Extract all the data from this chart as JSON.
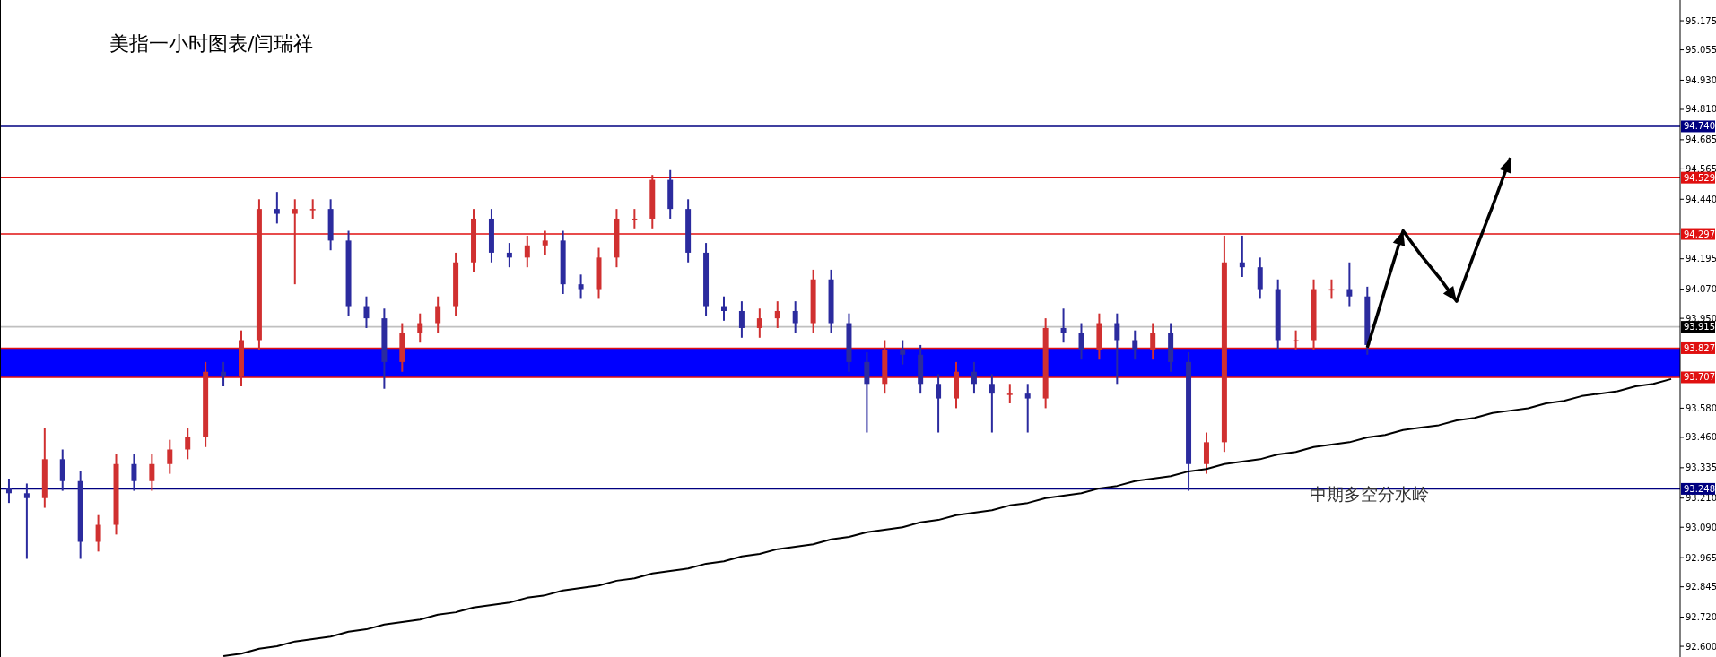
{
  "chart_data": {
    "type": "candlestick",
    "title": "美指一小时图表/闫瑞祥",
    "annotations": [
      "中期多空分水岭"
    ],
    "categories": [
      null,
      null,
      null,
      null,
      null,
      null,
      null,
      null,
      null,
      null,
      null,
      null,
      null,
      null,
      null,
      null,
      null,
      null,
      null,
      null,
      null,
      null,
      null,
      null,
      null,
      null,
      null,
      null,
      null,
      null,
      null,
      null,
      null,
      null,
      null,
      null,
      null,
      null,
      null,
      null,
      null,
      null,
      null,
      null,
      null,
      null,
      null,
      null,
      null,
      null,
      null,
      null,
      null,
      null,
      null,
      null,
      null,
      null,
      null,
      null,
      null,
      null,
      null,
      null,
      null,
      null,
      null,
      null,
      null,
      null,
      null,
      null,
      null,
      null,
      null,
      null,
      null,
      null,
      null,
      null,
      null,
      null,
      null,
      null,
      null,
      null,
      null,
      null,
      null,
      null,
      null,
      null,
      null,
      null
    ],
    "ylim": [
      92.556,
      95.26
    ],
    "tick_labels": "y",
    "yticks": [
      {
        "value": 95.175,
        "label": "95.175"
      },
      {
        "value": 95.055,
        "label": "95.055"
      },
      {
        "value": 94.93,
        "label": "94.930"
      },
      {
        "value": 94.81,
        "label": "94.810"
      },
      {
        "value": 94.685,
        "label": "94.685"
      },
      {
        "value": 94.565,
        "label": "94.565"
      },
      {
        "value": 94.44,
        "label": "94.440"
      },
      {
        "value": 94.195,
        "label": "94.195"
      },
      {
        "value": 94.07,
        "label": "94.070"
      },
      {
        "value": 93.95,
        "label": "93.950"
      },
      {
        "value": 93.58,
        "label": "93.580"
      },
      {
        "value": 93.46,
        "label": "93.460"
      },
      {
        "value": 93.335,
        "label": "93.335"
      },
      {
        "value": 93.21,
        "label": "93.210"
      },
      {
        "value": 93.09,
        "label": "93.090"
      },
      {
        "value": 92.965,
        "label": "92.965"
      },
      {
        "value": 92.845,
        "label": "92.845"
      },
      {
        "value": 92.72,
        "label": "92.720"
      },
      {
        "value": 92.6,
        "label": "92.600"
      }
    ],
    "ref_lines": [
      {
        "axis": "y",
        "value": 94.74,
        "label": "94.740",
        "color": "#000080"
      },
      {
        "axis": "y",
        "value": 94.529,
        "label": "94.529",
        "color": "#e01010"
      },
      {
        "axis": "y",
        "value": 94.297,
        "label": "94.297",
        "color": "#e01010"
      },
      {
        "axis": "y",
        "value": 93.915,
        "label": "93.915",
        "color": "#c0c0c0"
      },
      {
        "axis": "y",
        "value": 93.827,
        "label": "93.827",
        "color": "#e01010"
      },
      {
        "axis": "y",
        "value": 93.707,
        "label": "93.707",
        "color": "#e01010"
      },
      {
        "axis": "y",
        "value": 93.248,
        "label": "93.248",
        "color": "#000080"
      }
    ],
    "bands": [
      {
        "axis": "y",
        "from": 93.707,
        "to": 93.827,
        "color": "#0000ff"
      }
    ],
    "series": [
      {
        "type": "candlestick",
        "colors": [
          "#2b2b9e",
          "#2b2b9e",
          "#d03030",
          "#2b2b9e",
          "#2b2b9e",
          "#d03030",
          "#d03030",
          "#2b2b9e",
          "#d03030",
          "#d03030",
          "#d03030",
          "#d03030",
          "#2b2b9e",
          "#d03030",
          "#d03030",
          "#2b2b9e",
          "#d03030",
          "#d03030",
          "#2b2b9e",
          "#2b2b9e",
          "#2b2b9e",
          "#2b2b9e",
          "#d03030",
          "#d03030",
          "#d03030",
          "#d03030",
          "#d03030",
          "#2b2b9e",
          "#2b2b9e",
          "#d03030",
          "#d03030",
          "#2b2b9e",
          "#2b2b9e",
          "#d03030",
          "#d03030",
          "#d03030",
          "#d03030",
          "#2b2b9e",
          "#2b2b9e",
          "#2b2b9e",
          "#2b2b9e",
          "#2b2b9e",
          "#d03030",
          "#d03030",
          "#2b2b9e",
          "#d03030",
          "#2b2b9e",
          "#2b2b9e",
          "#2b2b9e",
          "#d03030",
          "#2b2b9e",
          "#2b2b9e",
          "#2b2b9e",
          "#d03030",
          "#2b2b9e",
          "#2b2b9e",
          "#d03030",
          "#2b2b9e",
          "#d03030",
          "#2b2b9e",
          "#2b2b9e",
          "#d03030",
          "#2b2b9e",
          "#2b2b9e",
          "#d03030",
          "#2b2b9e",
          "#2b2b9e",
          "#d03030",
          "#d03030",
          "#2b2b9e",
          "#2b2b9e",
          "#2b2b9e",
          "#d03030",
          "#d03030",
          "#d03030",
          "#2b2b9e",
          "#2b2b9e",
          null,
          null,
          null,
          null,
          null,
          null,
          null,
          null,
          null,
          null,
          null,
          null,
          null,
          null,
          null,
          null,
          null
        ],
        "ohlc": [
          [
            93.25,
            93.29,
            93.19,
            93.23
          ],
          [
            93.23,
            93.27,
            92.96,
            93.21
          ],
          [
            93.21,
            93.5,
            93.17,
            93.37
          ],
          [
            93.37,
            93.41,
            93.24,
            93.28
          ],
          [
            93.28,
            93.32,
            92.96,
            93.03
          ],
          [
            93.03,
            93.14,
            92.99,
            93.1
          ],
          [
            93.1,
            93.39,
            93.06,
            93.35
          ],
          [
            93.35,
            93.39,
            93.24,
            93.28
          ],
          [
            93.28,
            93.39,
            93.24,
            93.35
          ],
          [
            93.35,
            93.45,
            93.31,
            93.41
          ],
          [
            93.41,
            93.5,
            93.37,
            93.46
          ],
          [
            93.46,
            93.77,
            93.42,
            93.73
          ],
          [
            93.73,
            93.77,
            93.67,
            93.71
          ],
          [
            93.71,
            93.9,
            93.67,
            93.86
          ],
          [
            93.86,
            94.44,
            93.82,
            94.4
          ],
          [
            94.4,
            94.47,
            94.34,
            94.38
          ],
          [
            94.38,
            94.44,
            94.09,
            94.4
          ],
          [
            94.4,
            94.44,
            94.36,
            94.4
          ],
          [
            94.4,
            94.44,
            94.23,
            94.27
          ],
          [
            94.27,
            94.31,
            93.96,
            94.0
          ],
          [
            94.0,
            94.04,
            93.91,
            93.95
          ],
          [
            93.95,
            93.99,
            93.66,
            93.77
          ],
          [
            93.77,
            93.93,
            93.73,
            93.89
          ],
          [
            93.89,
            93.97,
            93.85,
            93.93
          ],
          [
            93.93,
            94.04,
            93.89,
            94.0
          ],
          [
            94.0,
            94.22,
            93.96,
            94.18
          ],
          [
            94.18,
            94.4,
            94.14,
            94.36
          ],
          [
            94.36,
            94.4,
            94.18,
            94.22
          ],
          [
            94.22,
            94.26,
            94.16,
            94.2
          ],
          [
            94.2,
            94.29,
            94.16,
            94.25
          ],
          [
            94.25,
            94.31,
            94.21,
            94.27
          ],
          [
            94.27,
            94.31,
            94.05,
            94.09
          ],
          [
            94.09,
            94.13,
            94.03,
            94.07
          ],
          [
            94.07,
            94.24,
            94.03,
            94.2
          ],
          [
            94.2,
            94.4,
            94.16,
            94.36
          ],
          [
            94.36,
            94.4,
            94.32,
            94.36
          ],
          [
            94.36,
            94.54,
            94.32,
            94.52
          ],
          [
            94.52,
            94.56,
            94.36,
            94.4
          ],
          [
            94.4,
            94.44,
            94.18,
            94.22
          ],
          [
            94.22,
            94.26,
            93.96,
            94.0
          ],
          [
            94.0,
            94.04,
            93.94,
            93.98
          ],
          [
            93.98,
            94.02,
            93.87,
            93.91
          ],
          [
            93.91,
            93.99,
            93.87,
            93.95
          ],
          [
            93.95,
            94.02,
            93.91,
            93.98
          ],
          [
            93.98,
            94.02,
            93.89,
            93.93
          ],
          [
            93.93,
            94.15,
            93.89,
            94.11
          ],
          [
            94.11,
            94.15,
            93.89,
            93.93
          ],
          [
            93.93,
            93.97,
            93.73,
            93.77
          ],
          [
            93.77,
            93.81,
            93.48,
            93.68
          ],
          [
            93.68,
            93.86,
            93.64,
            93.82
          ],
          [
            93.82,
            93.86,
            93.76,
            93.8
          ],
          [
            93.8,
            93.84,
            93.64,
            93.68
          ],
          [
            93.68,
            93.72,
            93.48,
            93.62
          ],
          [
            93.62,
            93.77,
            93.58,
            93.73
          ],
          [
            93.73,
            93.77,
            93.64,
            93.68
          ],
          [
            93.68,
            93.72,
            93.48,
            93.64
          ],
          [
            93.64,
            93.68,
            93.6,
            93.64
          ],
          [
            93.64,
            93.68,
            93.48,
            93.62
          ],
          [
            93.62,
            93.95,
            93.58,
            93.91
          ],
          [
            93.91,
            93.99,
            93.85,
            93.89
          ],
          [
            93.89,
            93.93,
            93.78,
            93.82
          ],
          [
            93.82,
            93.97,
            93.78,
            93.93
          ],
          [
            93.93,
            93.97,
            93.68,
            93.86
          ],
          [
            93.86,
            93.9,
            93.78,
            93.82
          ],
          [
            93.82,
            93.93,
            93.78,
            93.89
          ],
          [
            93.89,
            93.93,
            93.73,
            93.77
          ],
          [
            93.77,
            93.81,
            93.24,
            93.35
          ],
          [
            93.35,
            93.48,
            93.31,
            93.44
          ],
          [
            93.44,
            94.29,
            93.4,
            94.18
          ],
          [
            94.18,
            94.29,
            94.12,
            94.16
          ],
          [
            94.16,
            94.2,
            94.03,
            94.07
          ],
          [
            94.07,
            94.11,
            93.82,
            93.86
          ],
          [
            93.86,
            93.9,
            93.82,
            93.86
          ],
          [
            93.86,
            94.11,
            93.82,
            94.07
          ],
          [
            94.07,
            94.11,
            94.03,
            94.07
          ],
          [
            94.07,
            94.18,
            94.0,
            94.04
          ],
          [
            94.04,
            94.08,
            93.8,
            93.84
          ],
          null,
          null,
          null,
          null,
          null,
          null,
          null,
          null,
          null,
          null,
          null,
          null,
          null,
          null,
          null,
          null,
          null
        ]
      },
      {
        "type": "line",
        "color": "#000000",
        "values": [
          null,
          null,
          null,
          null,
          null,
          null,
          null,
          null,
          null,
          null,
          null,
          null,
          92.56,
          92.57,
          92.59,
          92.6,
          92.62,
          92.63,
          92.64,
          92.66,
          92.67,
          92.69,
          92.7,
          92.71,
          92.73,
          92.74,
          92.76,
          92.77,
          92.78,
          92.8,
          92.81,
          92.83,
          92.84,
          92.85,
          92.87,
          92.88,
          92.9,
          92.91,
          92.92,
          92.94,
          92.95,
          92.97,
          92.98,
          93.0,
          93.01,
          93.02,
          93.04,
          93.05,
          93.07,
          93.08,
          93.09,
          93.11,
          93.12,
          93.14,
          93.15,
          93.16,
          93.18,
          93.19,
          93.21,
          93.22,
          93.23,
          93.25,
          93.26,
          93.28,
          93.29,
          93.3,
          93.32,
          93.33,
          93.35,
          93.36,
          93.37,
          93.39,
          93.4,
          93.42,
          93.43,
          93.44,
          93.46,
          93.47,
          93.49,
          93.5,
          93.51,
          93.53,
          93.54,
          93.56,
          93.57,
          93.58,
          93.6,
          93.61,
          93.63,
          93.64,
          93.65,
          93.67,
          93.68,
          93.7
        ]
      },
      {
        "type": "line",
        "color": "#000000",
        "values": [
          null,
          null,
          null,
          null,
          null,
          null,
          null,
          null,
          null,
          null,
          null,
          null,
          null,
          null,
          null,
          null,
          null,
          null,
          null,
          null,
          null,
          null,
          null,
          null,
          null,
          null,
          null,
          null,
          null,
          null,
          null,
          null,
          null,
          null,
          null,
          null,
          null,
          null,
          null,
          null,
          null,
          null,
          null,
          null,
          null,
          null,
          null,
          null,
          null,
          null,
          null,
          null,
          null,
          null,
          null,
          null,
          null,
          null,
          null,
          null,
          null,
          null,
          null,
          null,
          null,
          null,
          null,
          null,
          null,
          null,
          null,
          null,
          null,
          null,
          null,
          null,
          93.83,
          94.07,
          94.31,
          94.21,
          94.12,
          94.02,
          94.22,
          94.41,
          94.61,
          null,
          null,
          null,
          null,
          null,
          null,
          null,
          null,
          null
        ]
      }
    ]
  }
}
